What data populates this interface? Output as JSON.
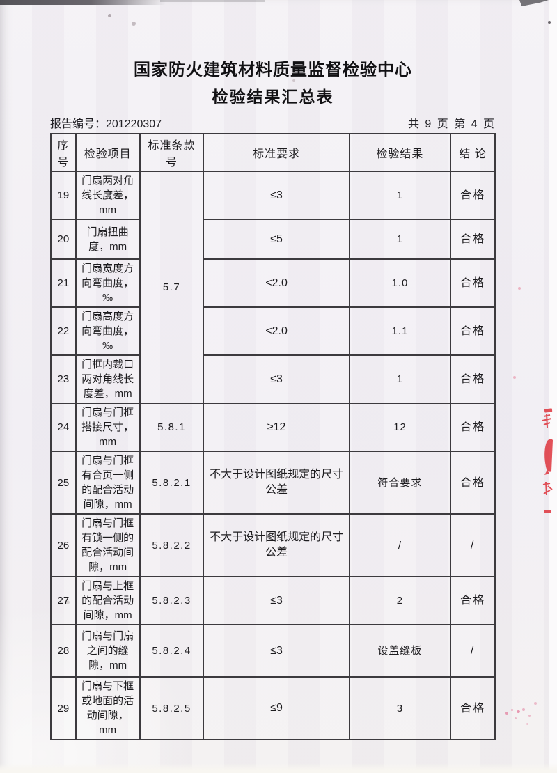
{
  "document": {
    "org_title": "国家防火建筑材料质量监督检验中心",
    "doc_title": "检验结果汇总表",
    "report_no": "报告编号：201220307",
    "page_indicator": "共 9 页 第 4 页"
  },
  "table": {
    "headers": [
      "序号",
      "检验项目",
      "标准条款号",
      "标准要求",
      "检验结果",
      "结 论"
    ],
    "rows": [
      {
        "no": "19",
        "item": "门扇两对角线长度差，mm",
        "clause": "5.7",
        "clause_rowspan": 5,
        "requirement": "≤3",
        "result": "1",
        "conclusion": "合格"
      },
      {
        "no": "20",
        "item": "门扇扭曲度，mm",
        "requirement": "≤5",
        "result": "1",
        "conclusion": "合格"
      },
      {
        "no": "21",
        "item": "门扇宽度方向弯曲度，‰",
        "requirement": "<2.0",
        "result": "1.0",
        "conclusion": "合格"
      },
      {
        "no": "22",
        "item": "门扇高度方向弯曲度，‰",
        "requirement": "<2.0",
        "result": "1.1",
        "conclusion": "合格"
      },
      {
        "no": "23",
        "item": "门框内裁口两对角线长度差，mm",
        "requirement": "≤3",
        "result": "1",
        "conclusion": "合格"
      },
      {
        "no": "24",
        "item": "门扇与门框搭接尺寸，mm",
        "clause": "5.8.1",
        "requirement": "≥12",
        "result": "12",
        "conclusion": "合格"
      },
      {
        "no": "25",
        "item": "门扇与门框有合页一侧的配合活动间隙，mm",
        "clause": "5.8.2.1",
        "requirement": "不大于设计图纸规定的尺寸公差",
        "result": "符合要求",
        "conclusion": "合格"
      },
      {
        "no": "26",
        "item": "门扇与门框有锁一侧的配合活动间隙，mm",
        "clause": "5.8.2.2",
        "requirement": "不大于设计图纸规定的尺寸公差",
        "result": "/",
        "conclusion": "/"
      },
      {
        "no": "27",
        "item": "门扇与上框的配合活动间隙，mm",
        "clause": "5.8.2.3",
        "requirement": "≤3",
        "result": "2",
        "conclusion": "合格"
      },
      {
        "no": "28",
        "item": "门扇与门扇之间的缝隙，mm",
        "clause": "5.8.2.4",
        "requirement": "≤3",
        "result": "设盖缝板",
        "conclusion": "/"
      },
      {
        "no": "29",
        "item": "门扇与下框或地面的活动间隙，mm",
        "clause": "5.8.2.5",
        "requirement": "≤9",
        "result": "3",
        "conclusion": "合格"
      }
    ]
  },
  "scan_artifacts": {
    "stamp_color": "#df3a43",
    "paper_color": "#f1eef3",
    "border_color": "#3c3a3e"
  }
}
